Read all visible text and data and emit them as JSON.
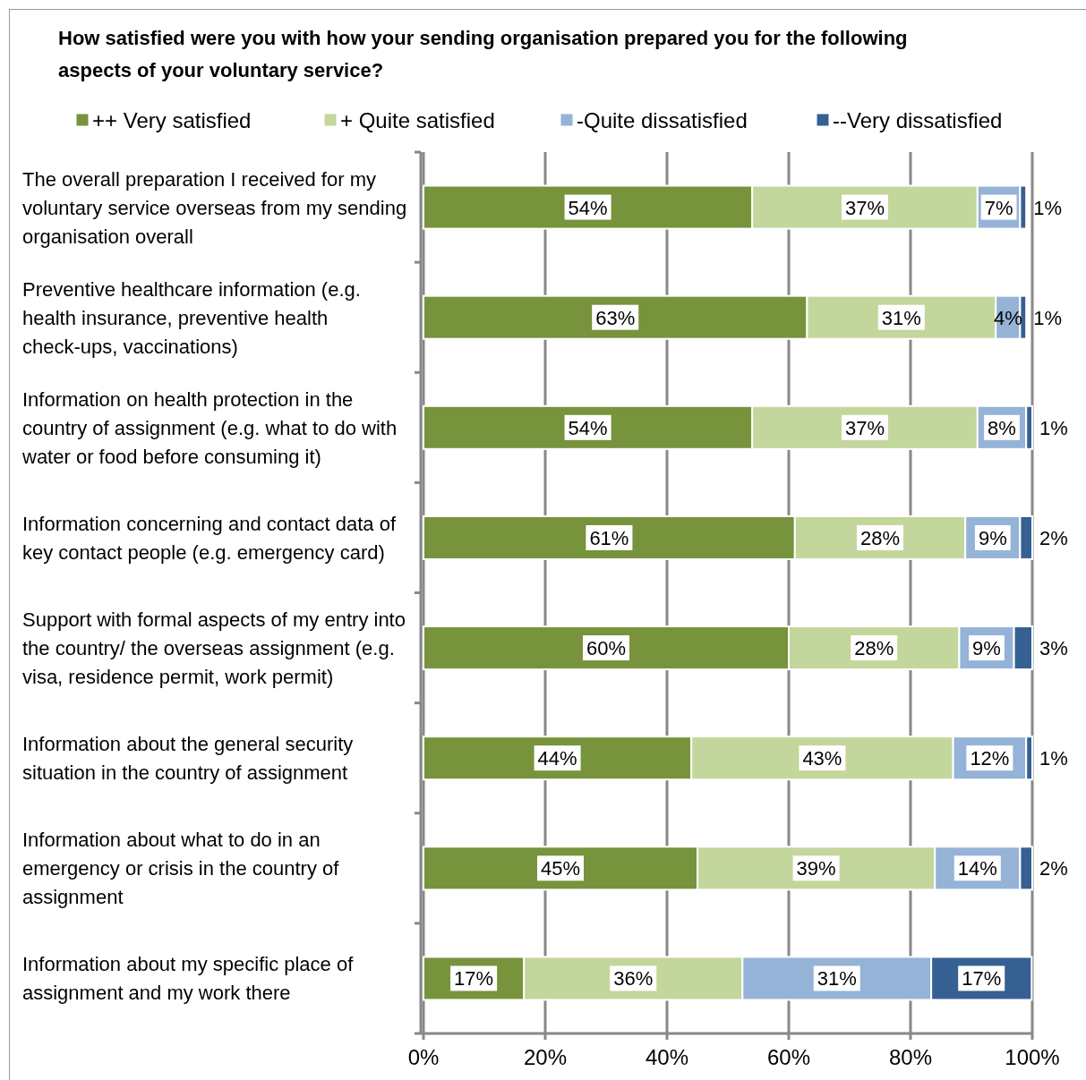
{
  "chart_data": {
    "type": "bar",
    "orientation": "horizontal",
    "stacked": true,
    "title": "How satisfied were you with how your sending organisation prepared you for the following aspects of your voluntary service?",
    "categories": [
      "The overall preparation I received for my voluntary service overseas from my sending organisation overall",
      "Preventive healthcare information (e.g. health insurance, preventive health check-ups, vaccinations)",
      "Information on health protection in the country of assignment (e.g. what to do with water or food before consuming it)",
      "Information concerning and contact data of key contact people (e.g. emergency card)",
      "Support with formal aspects of my entry into the country/ the overseas assignment (e.g. visa, residence permit, work permit)",
      "Information about the general security situation in the country of assignment",
      "Information about what to do in an emergency or crisis in the country of assignment",
      "Information about my specific place of assignment and my work there"
    ],
    "series": [
      {
        "name": "++ Very satisfied",
        "color": "#77933c",
        "values": [
          54,
          63,
          54,
          61,
          60,
          44,
          45,
          16.5
        ],
        "value_labels": [
          "54%",
          "63%",
          "54%",
          "61%",
          "60%",
          "44%",
          "45%",
          "17%"
        ]
      },
      {
        "name": "+ Quite satisfied",
        "color": "#c3d69b",
        "values": [
          37,
          31,
          37,
          28,
          28,
          43,
          39,
          35.9
        ],
        "value_labels": [
          "37%",
          "31%",
          "37%",
          "28%",
          "28%",
          "43%",
          "39%",
          "36%"
        ]
      },
      {
        "name": "-Quite dissatisfied",
        "color": "#95b3d7",
        "values": [
          7,
          4,
          8,
          9,
          9,
          12,
          14,
          31
        ],
        "value_labels": [
          "7%",
          "4%",
          "8%",
          "9%",
          "9%",
          "12%",
          "14%",
          "31%"
        ]
      },
      {
        "name": "--Very dissatisfied",
        "color": "#376092",
        "values": [
          1,
          1,
          1,
          2,
          3,
          1,
          2,
          16.5
        ],
        "value_labels": [
          "1%",
          "1%",
          "1%",
          "2%",
          "3%",
          "1%",
          "2%",
          "17%"
        ]
      }
    ],
    "xlim": [
      0,
      100
    ],
    "xticks": [
      {
        "value": 0,
        "label": "0%"
      },
      {
        "value": 20,
        "label": "20%"
      },
      {
        "value": 40,
        "label": "40%"
      },
      {
        "value": 60,
        "label": "60%"
      },
      {
        "value": 80,
        "label": "80%"
      },
      {
        "value": 100,
        "label": "100%"
      }
    ],
    "grid": "x",
    "legend": "top"
  }
}
